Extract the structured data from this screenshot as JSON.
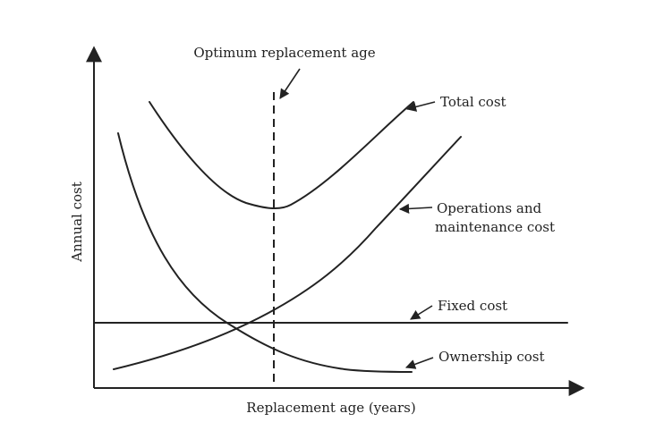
{
  "diagram": {
    "axes": {
      "x_label": "Replacement age (years)",
      "y_label": "Annual cost"
    },
    "vertical_line_label": "Optimum replacement age",
    "curves": [
      {
        "id": "total",
        "label_lines": [
          "Total cost"
        ]
      },
      {
        "id": "om",
        "label_lines": [
          "Operations and",
          "maintenance cost"
        ]
      },
      {
        "id": "fixed",
        "label_lines": [
          "Fixed cost"
        ]
      },
      {
        "id": "ownership",
        "label_lines": [
          "Ownership cost"
        ]
      }
    ],
    "colors": {
      "line": "#222222",
      "background": "#ffffff"
    }
  }
}
